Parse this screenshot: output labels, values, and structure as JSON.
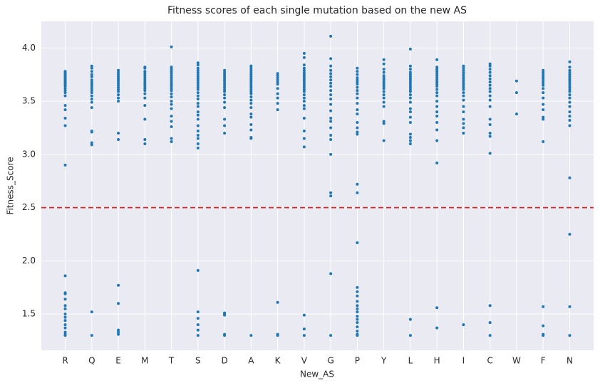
{
  "chart_data": {
    "type": "strip",
    "title": "Fitness scores of each single mutation based on the new AS",
    "x_label": "New_AS",
    "y_label": "Fitness_Score",
    "categories": [
      "R",
      "Q",
      "E",
      "M",
      "T",
      "S",
      "D",
      "A",
      "K",
      "V",
      "G",
      "P",
      "Y",
      "L",
      "H",
      "I",
      "C",
      "W",
      "F",
      "N"
    ],
    "values": [
      [
        3.78,
        3.77,
        3.76,
        3.75,
        3.74,
        3.73,
        3.72,
        3.71,
        3.7,
        3.69,
        3.68,
        3.67,
        3.66,
        3.65,
        3.64,
        3.62,
        3.6,
        3.58,
        3.55,
        3.46,
        3.42,
        3.34,
        3.27,
        2.9,
        1.86,
        1.7,
        1.69,
        1.64,
        1.58,
        1.55,
        1.5,
        1.47,
        1.44,
        1.4,
        1.37,
        1.33,
        1.31,
        1.3
      ],
      [
        3.83,
        3.81,
        3.78,
        3.75,
        3.73,
        3.7,
        3.68,
        3.66,
        3.64,
        3.62,
        3.6,
        3.58,
        3.55,
        3.52,
        3.49,
        3.44,
        3.22,
        3.21,
        3.11,
        3.09,
        1.52,
        1.3
      ],
      [
        3.79,
        3.77,
        3.75,
        3.73,
        3.71,
        3.69,
        3.67,
        3.65,
        3.63,
        3.61,
        3.59,
        3.56,
        3.53,
        3.5,
        3.2,
        3.14,
        1.77,
        1.6,
        1.35,
        1.33,
        1.31
      ],
      [
        3.82,
        3.81,
        3.78,
        3.76,
        3.74,
        3.72,
        3.7,
        3.68,
        3.66,
        3.64,
        3.62,
        3.6,
        3.57,
        3.53,
        3.46,
        3.33,
        3.14,
        3.1
      ],
      [
        4.01,
        3.82,
        3.8,
        3.78,
        3.76,
        3.74,
        3.72,
        3.7,
        3.68,
        3.66,
        3.64,
        3.62,
        3.6,
        3.57,
        3.54,
        3.5,
        3.47,
        3.43,
        3.36,
        3.31,
        3.26,
        3.15,
        3.12
      ],
      [
        3.86,
        3.84,
        3.81,
        3.79,
        3.77,
        3.75,
        3.73,
        3.71,
        3.69,
        3.67,
        3.65,
        3.63,
        3.61,
        3.58,
        3.55,
        3.52,
        3.48,
        3.45,
        3.4,
        3.37,
        3.33,
        3.27,
        3.22,
        3.18,
        3.15,
        3.1,
        3.06,
        1.91,
        1.52,
        1.46,
        1.4,
        1.35,
        1.3
      ],
      [
        3.79,
        3.77,
        3.75,
        3.73,
        3.71,
        3.69,
        3.67,
        3.65,
        3.63,
        3.61,
        3.59,
        3.56,
        3.53,
        3.49,
        3.44,
        3.33,
        3.27,
        3.2,
        1.51,
        1.5,
        1.49,
        1.31,
        1.3
      ],
      [
        3.83,
        3.81,
        3.79,
        3.77,
        3.75,
        3.73,
        3.71,
        3.69,
        3.67,
        3.65,
        3.63,
        3.61,
        3.59,
        3.57,
        3.54,
        3.51,
        3.48,
        3.44,
        3.38,
        3.35,
        3.28,
        3.23,
        3.16,
        3.15,
        1.3
      ],
      [
        3.76,
        3.74,
        3.72,
        3.7,
        3.68,
        3.66,
        3.62,
        3.57,
        3.53,
        3.48,
        3.42,
        1.61,
        1.31,
        1.3
      ],
      [
        3.95,
        3.91,
        3.84,
        3.81,
        3.79,
        3.77,
        3.75,
        3.73,
        3.71,
        3.69,
        3.67,
        3.65,
        3.63,
        3.61,
        3.59,
        3.56,
        3.53,
        3.5,
        3.46,
        3.43,
        3.34,
        3.22,
        3.15,
        3.07,
        1.49,
        1.36,
        1.3
      ],
      [
        4.11,
        3.9,
        3.83,
        3.79,
        3.76,
        3.73,
        3.7,
        3.67,
        3.64,
        3.6,
        3.56,
        3.52,
        3.47,
        3.41,
        3.34,
        3.31,
        3.25,
        3.18,
        3.14,
        3.0,
        2.64,
        2.61,
        1.88,
        1.3
      ],
      [
        3.81,
        3.78,
        3.75,
        3.72,
        3.7,
        3.68,
        3.66,
        3.63,
        3.6,
        3.57,
        3.53,
        3.48,
        3.42,
        3.38,
        3.3,
        3.25,
        3.21,
        3.19,
        2.72,
        2.64,
        2.17,
        1.75,
        1.71,
        1.67,
        1.62,
        1.58,
        1.55,
        1.52,
        1.48,
        1.45,
        1.42,
        1.38,
        1.34,
        1.31,
        1.3
      ],
      [
        3.89,
        3.85,
        3.8,
        3.77,
        3.74,
        3.72,
        3.7,
        3.68,
        3.66,
        3.64,
        3.62,
        3.59,
        3.56,
        3.53,
        3.49,
        3.45,
        3.31,
        3.29,
        3.13
      ],
      [
        3.99,
        3.83,
        3.8,
        3.77,
        3.75,
        3.73,
        3.71,
        3.69,
        3.67,
        3.65,
        3.63,
        3.61,
        3.59,
        3.56,
        3.53,
        3.49,
        3.43,
        3.4,
        3.35,
        3.3,
        3.19,
        3.16,
        3.13,
        3.1,
        1.45,
        1.3
      ],
      [
        3.89,
        3.82,
        3.8,
        3.78,
        3.76,
        3.74,
        3.72,
        3.7,
        3.68,
        3.66,
        3.64,
        3.61,
        3.58,
        3.55,
        3.5,
        3.45,
        3.4,
        3.36,
        3.3,
        3.23,
        3.13,
        2.92,
        1.56,
        1.37
      ],
      [
        3.83,
        3.81,
        3.79,
        3.77,
        3.75,
        3.73,
        3.71,
        3.69,
        3.67,
        3.65,
        3.63,
        3.61,
        3.58,
        3.55,
        3.51,
        3.45,
        3.4,
        3.33,
        3.29,
        3.25,
        3.2,
        1.4
      ],
      [
        3.85,
        3.83,
        3.8,
        3.77,
        3.74,
        3.71,
        3.68,
        3.65,
        3.62,
        3.59,
        3.55,
        3.51,
        3.45,
        3.33,
        3.28,
        3.2,
        3.17,
        3.01,
        1.58,
        1.42,
        1.3
      ],
      [
        3.69,
        3.58,
        3.38
      ],
      [
        3.79,
        3.77,
        3.75,
        3.73,
        3.71,
        3.69,
        3.67,
        3.65,
        3.62,
        3.58,
        3.53,
        3.47,
        3.42,
        3.35,
        3.33,
        3.12,
        1.57,
        1.39,
        1.31,
        1.3
      ],
      [
        3.87,
        3.82,
        3.79,
        3.77,
        3.75,
        3.73,
        3.71,
        3.69,
        3.67,
        3.65,
        3.63,
        3.61,
        3.59,
        3.56,
        3.53,
        3.49,
        3.45,
        3.4,
        3.36,
        3.32,
        3.27,
        2.78,
        2.25,
        1.57,
        1.3
      ]
    ],
    "color": "#1f77b4",
    "threshold": 2.5,
    "threshold_color": "#d62728",
    "ylim": [
      1.16,
      4.25
    ],
    "yticks": [
      1.5,
      {
        "value": 2,
        "label": "2.0"
      },
      2.5,
      {
        "value": 3,
        "label": "3.0"
      },
      3.5,
      {
        "value": 4,
        "label": "4.0"
      }
    ],
    "grid": true
  }
}
